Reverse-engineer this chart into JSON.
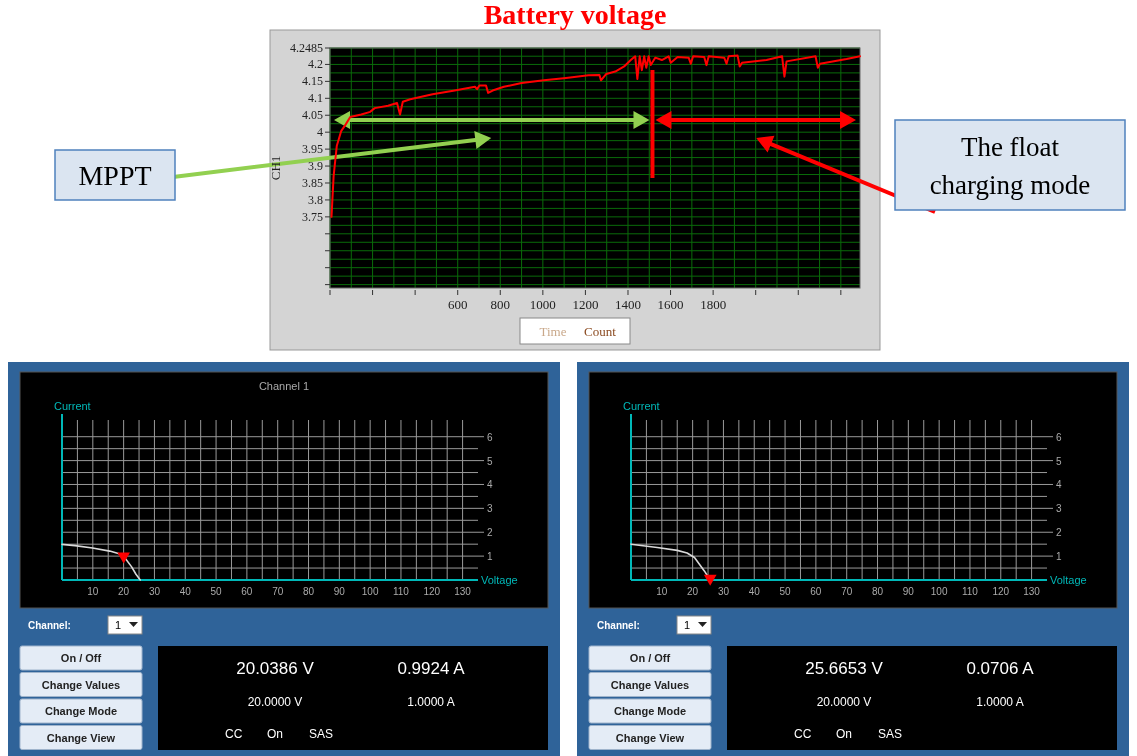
{
  "chart_data": [
    {
      "type": "line",
      "title": "Battery voltage",
      "ylabel": "CH1",
      "xlim": [
        0,
        2490
      ],
      "ylim": [
        3.54,
        4.2485
      ],
      "xticks": [
        {
          "value": 0,
          "label": null
        },
        {
          "value": 200,
          "label": null
        },
        {
          "value": 400,
          "label": null
        },
        600,
        800,
        1000,
        1200,
        1400,
        1600,
        1800,
        {
          "value": 2000,
          "label": null
        },
        {
          "value": 2200,
          "label": null
        },
        {
          "value": 2400,
          "label": null
        }
      ],
      "yticks": [
        4.2485,
        4.2,
        4.15,
        4.1,
        4.05,
        4,
        3.95,
        3.9,
        3.85,
        3.8,
        3.75,
        {
          "value": 3.7,
          "label": null
        },
        {
          "value": 3.65,
          "label": null
        },
        {
          "value": 3.6,
          "label": null
        },
        {
          "value": 3.55,
          "label": null
        }
      ],
      "grid": true,
      "series": [
        {
          "color": "#ff0000",
          "x": [
            7,
            17,
            32,
            53,
            74,
            95,
            147,
            189,
            210,
            273,
            315,
            329,
            342,
            377,
            482,
            586,
            681,
            691,
            702,
            733,
            743,
            764,
            817,
            900,
            1005,
            1109,
            1214,
            1266,
            1273,
            1298,
            1340,
            1382,
            1413,
            1434,
            1444,
            1455,
            1465,
            1476,
            1486,
            1497,
            1507,
            1528,
            1559,
            1591,
            1601,
            1633,
            1685,
            1695,
            1706,
            1758,
            1769,
            1779,
            1852,
            1863,
            1873,
            1915,
            1925,
            1936,
            2051,
            2124,
            2135,
            2145,
            2281,
            2292,
            2302,
            2427,
            2490
          ],
          "values": [
            3.75,
            3.87,
            3.96,
            4.004,
            4.023,
            4.045,
            4.052,
            4.06,
            4.071,
            4.078,
            4.086,
            4.052,
            4.09,
            4.097,
            4.112,
            4.123,
            4.134,
            4.127,
            4.138,
            4.138,
            4.116,
            4.123,
            4.134,
            4.145,
            4.153,
            4.16,
            4.168,
            4.169,
            4.153,
            4.172,
            4.179,
            4.194,
            4.213,
            4.224,
            4.157,
            4.224,
            4.183,
            4.224,
            4.19,
            4.224,
            4.198,
            4.22,
            4.213,
            4.224,
            4.205,
            4.222,
            4.22,
            4.202,
            4.224,
            4.222,
            4.198,
            4.224,
            4.22,
            4.202,
            4.224,
            4.226,
            4.194,
            4.205,
            4.213,
            4.224,
            4.164,
            4.209,
            4.224,
            4.19,
            4.202,
            4.216,
            4.224
          ]
        }
      ],
      "ref_lines": [
        {
          "axis": "x",
          "value": 1515,
          "color": "#ff0000"
        }
      ],
      "annotations": [
        "MPPT",
        "The float charging mode",
        "Time",
        "Count"
      ]
    },
    {
      "type": "line",
      "title": "Channel 1",
      "xlabel": "Voltage",
      "ylabel": "Current",
      "xlim": [
        0,
        135
      ],
      "ylim": [
        0,
        6.7
      ],
      "xticks": [
        {
          "value": 0,
          "label": null
        },
        10,
        20,
        30,
        40,
        50,
        60,
        70,
        80,
        90,
        100,
        110,
        120,
        130
      ],
      "yticks": [
        1,
        2,
        3,
        4,
        5,
        6
      ],
      "grid": true,
      "series": [
        {
          "type": "line",
          "color": "#d9d9d9",
          "x": [
            0,
            4.2,
            9.9,
            15.5,
            19.1,
            20.5,
            22.6,
            24,
            25.4
          ],
          "values": [
            1.49,
            1.44,
            1.34,
            1.21,
            1.08,
            0.91,
            0.55,
            0.24,
            0
          ]
        },
        {
          "type": "scatter",
          "color": "#ff0000",
          "marker": "triangle",
          "x": [
            20
          ],
          "values": [
            1
          ]
        }
      ],
      "annotations": [
        "Channel:",
        "1",
        "On / Off",
        "Change Values",
        "Change Mode",
        "Change View",
        "20.0386 V",
        "0.9924 A",
        "20.0000 V",
        "1.0000 A",
        "CC",
        "On",
        "SAS"
      ]
    },
    {
      "type": "line",
      "xlabel": "Voltage",
      "ylabel": "Current",
      "xlim": [
        0,
        135
      ],
      "ylim": [
        0,
        6.7
      ],
      "xticks": [
        {
          "value": 0,
          "label": null
        },
        10,
        20,
        30,
        40,
        50,
        60,
        70,
        80,
        90,
        100,
        110,
        120,
        130
      ],
      "yticks": [
        1,
        2,
        3,
        4,
        5,
        6
      ],
      "grid": true,
      "series": [
        {
          "type": "line",
          "color": "#d9d9d9",
          "x": [
            0,
            8.5,
            15,
            18.2,
            20.6,
            22.2,
            23.8,
            25.7
          ],
          "values": [
            1.5,
            1.36,
            1.24,
            1.13,
            0.94,
            0.66,
            0.38,
            0
          ]
        },
        {
          "type": "scatter",
          "color": "#ff0000",
          "marker": "triangle",
          "x": [
            25.7
          ],
          "values": [
            0.07
          ]
        }
      ],
      "annotations": [
        "Channel:",
        "1",
        "On / Off",
        "Change Values",
        "Change Mode",
        "Change View",
        "25.6653 V",
        "0.0706 A",
        "20.0000 V",
        "1.0000 A",
        "CC",
        "On",
        "SAS"
      ]
    }
  ]
}
